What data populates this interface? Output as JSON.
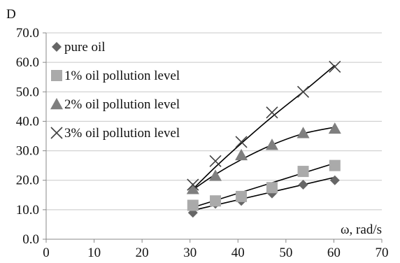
{
  "chart_data": {
    "type": "scatter",
    "title": "",
    "ylabel": "D",
    "xlabel": "ω, rad/s",
    "xlim": [
      0,
      70
    ],
    "ylim": [
      0,
      70
    ],
    "xticks": [
      0,
      10,
      20,
      30,
      40,
      50,
      60,
      70
    ],
    "yticks": [
      0,
      10,
      20,
      30,
      40,
      50,
      60,
      70
    ],
    "xtick_labels": [
      "0",
      "10",
      "20",
      "30",
      "40",
      "50",
      "60",
      "70"
    ],
    "ytick_labels": [
      "0.0",
      "10.0",
      "20.0",
      "30.0",
      "40.0",
      "50.0",
      "60.0",
      "70.0"
    ],
    "grid": "horizontal",
    "legend_position": "top-left",
    "trendlines": true,
    "series": [
      {
        "name": "pure oil",
        "marker": "diamond",
        "color": "#666666",
        "x": [
          30.6,
          35.3,
          40.7,
          47.1,
          53.6,
          60.2
        ],
        "y": [
          9.0,
          12.0,
          13.0,
          15.5,
          18.5,
          20.0
        ],
        "trend": [
          [
            30.6,
            9.8
          ],
          [
            60.2,
            21.0
          ]
        ]
      },
      {
        "name": "1% oil pollution level",
        "marker": "square",
        "color": "#aaaaaa",
        "x": [
          30.6,
          35.3,
          40.7,
          47.1,
          53.6,
          60.2
        ],
        "y": [
          11.5,
          13.0,
          14.5,
          17.5,
          23.0,
          25.0
        ],
        "trend": [
          [
            30.6,
            10.8
          ],
          [
            60.2,
            25.8
          ]
        ]
      },
      {
        "name": "2% oil pollution level",
        "marker": "triangle",
        "color": "#7f7f7f",
        "x": [
          30.6,
          35.3,
          40.7,
          47.1,
          53.6,
          60.2
        ],
        "y": [
          17.0,
          21.5,
          28.5,
          32.0,
          36.0,
          37.5
        ],
        "trend": [
          [
            30.6,
            16.8
          ],
          [
            35.3,
            22.0
          ],
          [
            40.7,
            27.0
          ],
          [
            47.1,
            32.0
          ],
          [
            53.6,
            35.8
          ],
          [
            60.2,
            38.0
          ]
        ]
      },
      {
        "name": "3% oil pollution level",
        "marker": "x",
        "color": "#404040",
        "x": [
          30.6,
          35.3,
          40.7,
          47.1,
          53.6,
          60.2
        ],
        "y": [
          18.5,
          26.5,
          33.0,
          43.0,
          50.0,
          58.5
        ],
        "trend": [
          [
            30.6,
            17.0
          ],
          [
            35.3,
            24.5
          ],
          [
            40.7,
            32.5
          ],
          [
            47.1,
            41.5
          ],
          [
            53.6,
            50.0
          ],
          [
            60.2,
            59.0
          ]
        ]
      }
    ]
  }
}
